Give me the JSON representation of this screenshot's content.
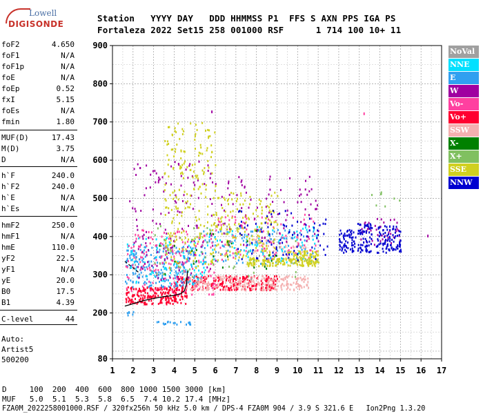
{
  "logo": {
    "line1": "Lowell",
    "line2": "DIGISONDE"
  },
  "header": {
    "line1": "Station   YYYY DAY   DDD HHMMSS P1  FFS S AXN PPS IGA PS",
    "line2": "Fortaleza 2022 Set15 258 001000 RSF      1 714 100 10+ 11"
  },
  "params": [
    {
      "name": "foF2",
      "value": "4.650"
    },
    {
      "name": "foF1",
      "value": "N/A"
    },
    {
      "name": "foF1p",
      "value": "N/A"
    },
    {
      "name": "foE",
      "value": "N/A"
    },
    {
      "name": "foEp",
      "value": "0.52"
    },
    {
      "name": "fxI",
      "value": "5.15"
    },
    {
      "name": "foEs",
      "value": "N/A"
    },
    {
      "name": "fmin",
      "value": "1.80"
    },
    {
      "name": "MUF(D)",
      "value": "17.43"
    },
    {
      "name": "M(D)",
      "value": "3.75"
    },
    {
      "name": "D",
      "value": "N/A"
    },
    {
      "name": "h`F",
      "value": "240.0"
    },
    {
      "name": "h`F2",
      "value": "240.0"
    },
    {
      "name": "h`E",
      "value": "N/A"
    },
    {
      "name": "h`Es",
      "value": "N/A"
    },
    {
      "name": "hmF2",
      "value": "250.0"
    },
    {
      "name": "hmF1",
      "value": "N/A"
    },
    {
      "name": "hmE",
      "value": "110.0"
    },
    {
      "name": "yF2",
      "value": "22.5"
    },
    {
      "name": "yF1",
      "value": "N/A"
    },
    {
      "name": "yE",
      "value": "20.0"
    },
    {
      "name": "B0",
      "value": "17.5"
    },
    {
      "name": "B1",
      "value": "4.39"
    },
    {
      "name": "C-level",
      "value": "44"
    }
  ],
  "auto": {
    "line1": "Auto:",
    "line2": "Artist5",
    "line3": "500200"
  },
  "legend": [
    {
      "label": "NoVal",
      "color": "#a0a0a0"
    },
    {
      "label": "NNE",
      "color": "#00e0ff"
    },
    {
      "label": "E",
      "color": "#30a0f0"
    },
    {
      "label": "W",
      "color": "#a000a0"
    },
    {
      "label": "Vo-",
      "color": "#ff40a0"
    },
    {
      "label": "Vo+",
      "color": "#ff0030"
    },
    {
      "label": "SSW",
      "color": "#f4b0b0"
    },
    {
      "label": "X-",
      "color": "#008000"
    },
    {
      "label": "X+",
      "color": "#80c060"
    },
    {
      "label": "SSE",
      "color": "#d0d020"
    },
    {
      "label": "NNW",
      "color": "#0000d0"
    }
  ],
  "footer": {
    "line1": "D     100  200  400  600  800 1000 1500 3000 [km]",
    "line2": "MUF   5.0  5.1  5.3  5.8  6.5  7.4 10.2 17.4 [MHz]",
    "line3": "FZA0M_2022258001000.RSF / 320fx256h 50 kHz 5.0 km / DPS-4 FZA0M 904 / 3.9 S 321.6 E   Ion2Png 1.3.20"
  },
  "chart_data": {
    "type": "scatter",
    "title": "",
    "xlabel": "",
    "ylabel": "",
    "xlim": [
      1,
      17
    ],
    "ylim": [
      80,
      900
    ],
    "x_ticks": [
      "1",
      "2",
      "3",
      "4",
      "5",
      "6",
      "7",
      "8",
      "9",
      "10",
      "11",
      "12",
      "13",
      "14",
      "15",
      "16",
      "17"
    ],
    "y_ticks": [
      "80",
      "200",
      "300",
      "400",
      "500",
      "600",
      "700",
      "800",
      "900"
    ],
    "grid": true,
    "legend_position": "right",
    "series": [
      {
        "name": "Vo+",
        "color": "#ff0030",
        "clusters": [
          {
            "x": [
              1.6,
              4.6
            ],
            "y": [
              225,
              270
            ],
            "n": 220
          },
          {
            "x": [
              4.0,
              9.0
            ],
            "y": [
              262,
              300
            ],
            "n": 260
          }
        ]
      },
      {
        "name": "SSW",
        "color": "#f4b0b0",
        "clusters": [
          {
            "x": [
              4.5,
              10.5
            ],
            "y": [
              262,
              300
            ],
            "n": 260
          },
          {
            "x": [
              7.5,
              10.5
            ],
            "y": [
              360,
              400
            ],
            "n": 70
          }
        ]
      },
      {
        "name": "E",
        "color": "#30a0f0",
        "clusters": [
          {
            "x": [
              1.6,
              5.0
            ],
            "y": [
              270,
              380
            ],
            "n": 220
          },
          {
            "x": [
              5.0,
              11.0
            ],
            "y": [
              330,
              420
            ],
            "n": 120
          },
          {
            "x": [
              3.0,
              4.8
            ],
            "y": [
              172,
              180
            ],
            "n": 18
          },
          {
            "x": [
              1.7,
              2.0
            ],
            "y": [
              195,
              205
            ],
            "n": 6
          }
        ]
      },
      {
        "name": "NNE",
        "color": "#00e0ff",
        "clusters": [
          {
            "x": [
              1.6,
              5.5
            ],
            "y": [
              270,
              400
            ],
            "n": 90
          },
          {
            "x": [
              5.5,
              11.0
            ],
            "y": [
              330,
              430
            ],
            "n": 70
          }
        ]
      },
      {
        "name": "Vo-",
        "color": "#ff40a0",
        "clusters": [
          {
            "x": [
              1.6,
              6.0
            ],
            "y": [
              250,
              420
            ],
            "n": 160
          },
          {
            "x": [
              6.0,
              11.0
            ],
            "y": [
              340,
              460
            ],
            "n": 80
          }
        ]
      },
      {
        "name": "W",
        "color": "#a000a0",
        "clusters": [
          {
            "x": [
              1.8,
              6.0
            ],
            "y": [
              280,
              600
            ],
            "n": 140
          },
          {
            "x": [
              6.0,
              11.0
            ],
            "y": [
              380,
              560
            ],
            "n": 90
          },
          {
            "x": [
              13.0,
              15.0
            ],
            "y": [
              370,
              450
            ],
            "n": 40
          }
        ]
      },
      {
        "name": "SSE",
        "color": "#d0d020",
        "clusters": [
          {
            "x": [
              3.5,
              6.0
            ],
            "y": [
              320,
              700
            ],
            "n": 230
          },
          {
            "x": [
              6.0,
              9.0
            ],
            "y": [
              340,
              520
            ],
            "n": 160
          },
          {
            "x": [
              7.5,
              11.0
            ],
            "y": [
              325,
              345
            ],
            "n": 160
          },
          {
            "x": [
              9.5,
              11.0
            ],
            "y": [
              345,
              365
            ],
            "n": 50
          }
        ]
      },
      {
        "name": "NNW",
        "color": "#0000d0",
        "clusters": [
          {
            "x": [
              7.0,
              11.5
            ],
            "y": [
              340,
              470
            ],
            "n": 80
          },
          {
            "x": [
              12.0,
              12.8
            ],
            "y": [
              360,
              420
            ],
            "n": 60
          },
          {
            "x": [
              12.9,
              13.6
            ],
            "y": [
              360,
              440
            ],
            "n": 70
          },
          {
            "x": [
              13.8,
              15.0
            ],
            "y": [
              360,
              430
            ],
            "n": 90
          }
        ]
      },
      {
        "name": "X+",
        "color": "#80c060",
        "clusters": [
          {
            "x": [
              3.0,
              10.0
            ],
            "y": [
              290,
              430
            ],
            "n": 40
          },
          {
            "x": [
              13.5,
              15.0
            ],
            "y": [
              480,
              520
            ],
            "n": 8
          }
        ]
      },
      {
        "name": "X-",
        "color": "#008000",
        "clusters": [
          {
            "x": [
              3.0,
              9.0
            ],
            "y": [
              290,
              420
            ],
            "n": 25
          }
        ]
      },
      {
        "name": "NoVal",
        "color": "#a0a0a0",
        "clusters": [
          {
            "x": [
              2.0,
              10.0
            ],
            "y": [
              280,
              430
            ],
            "n": 20
          }
        ]
      }
    ],
    "outliers": [
      {
        "x": 13.2,
        "y": 725,
        "color": "#ff40a0"
      },
      {
        "x": 5.8,
        "y": 730,
        "color": "#a000a0"
      },
      {
        "x": 16.3,
        "y": 405,
        "color": "#a000a0"
      },
      {
        "x": 14.3,
        "y": 375,
        "color": "#0000d0"
      }
    ],
    "profile_curve": {
      "x": [
        1.6,
        2.0,
        2.5,
        3.0,
        3.5,
        4.0,
        4.3,
        4.5,
        4.6,
        4.65
      ],
      "y": [
        218,
        224,
        232,
        238,
        243,
        246,
        250,
        258,
        275,
        310
      ]
    },
    "dashed_curve": {
      "x": [
        1.6,
        2.0,
        2.3
      ],
      "y": [
        335,
        318,
        305
      ]
    }
  }
}
